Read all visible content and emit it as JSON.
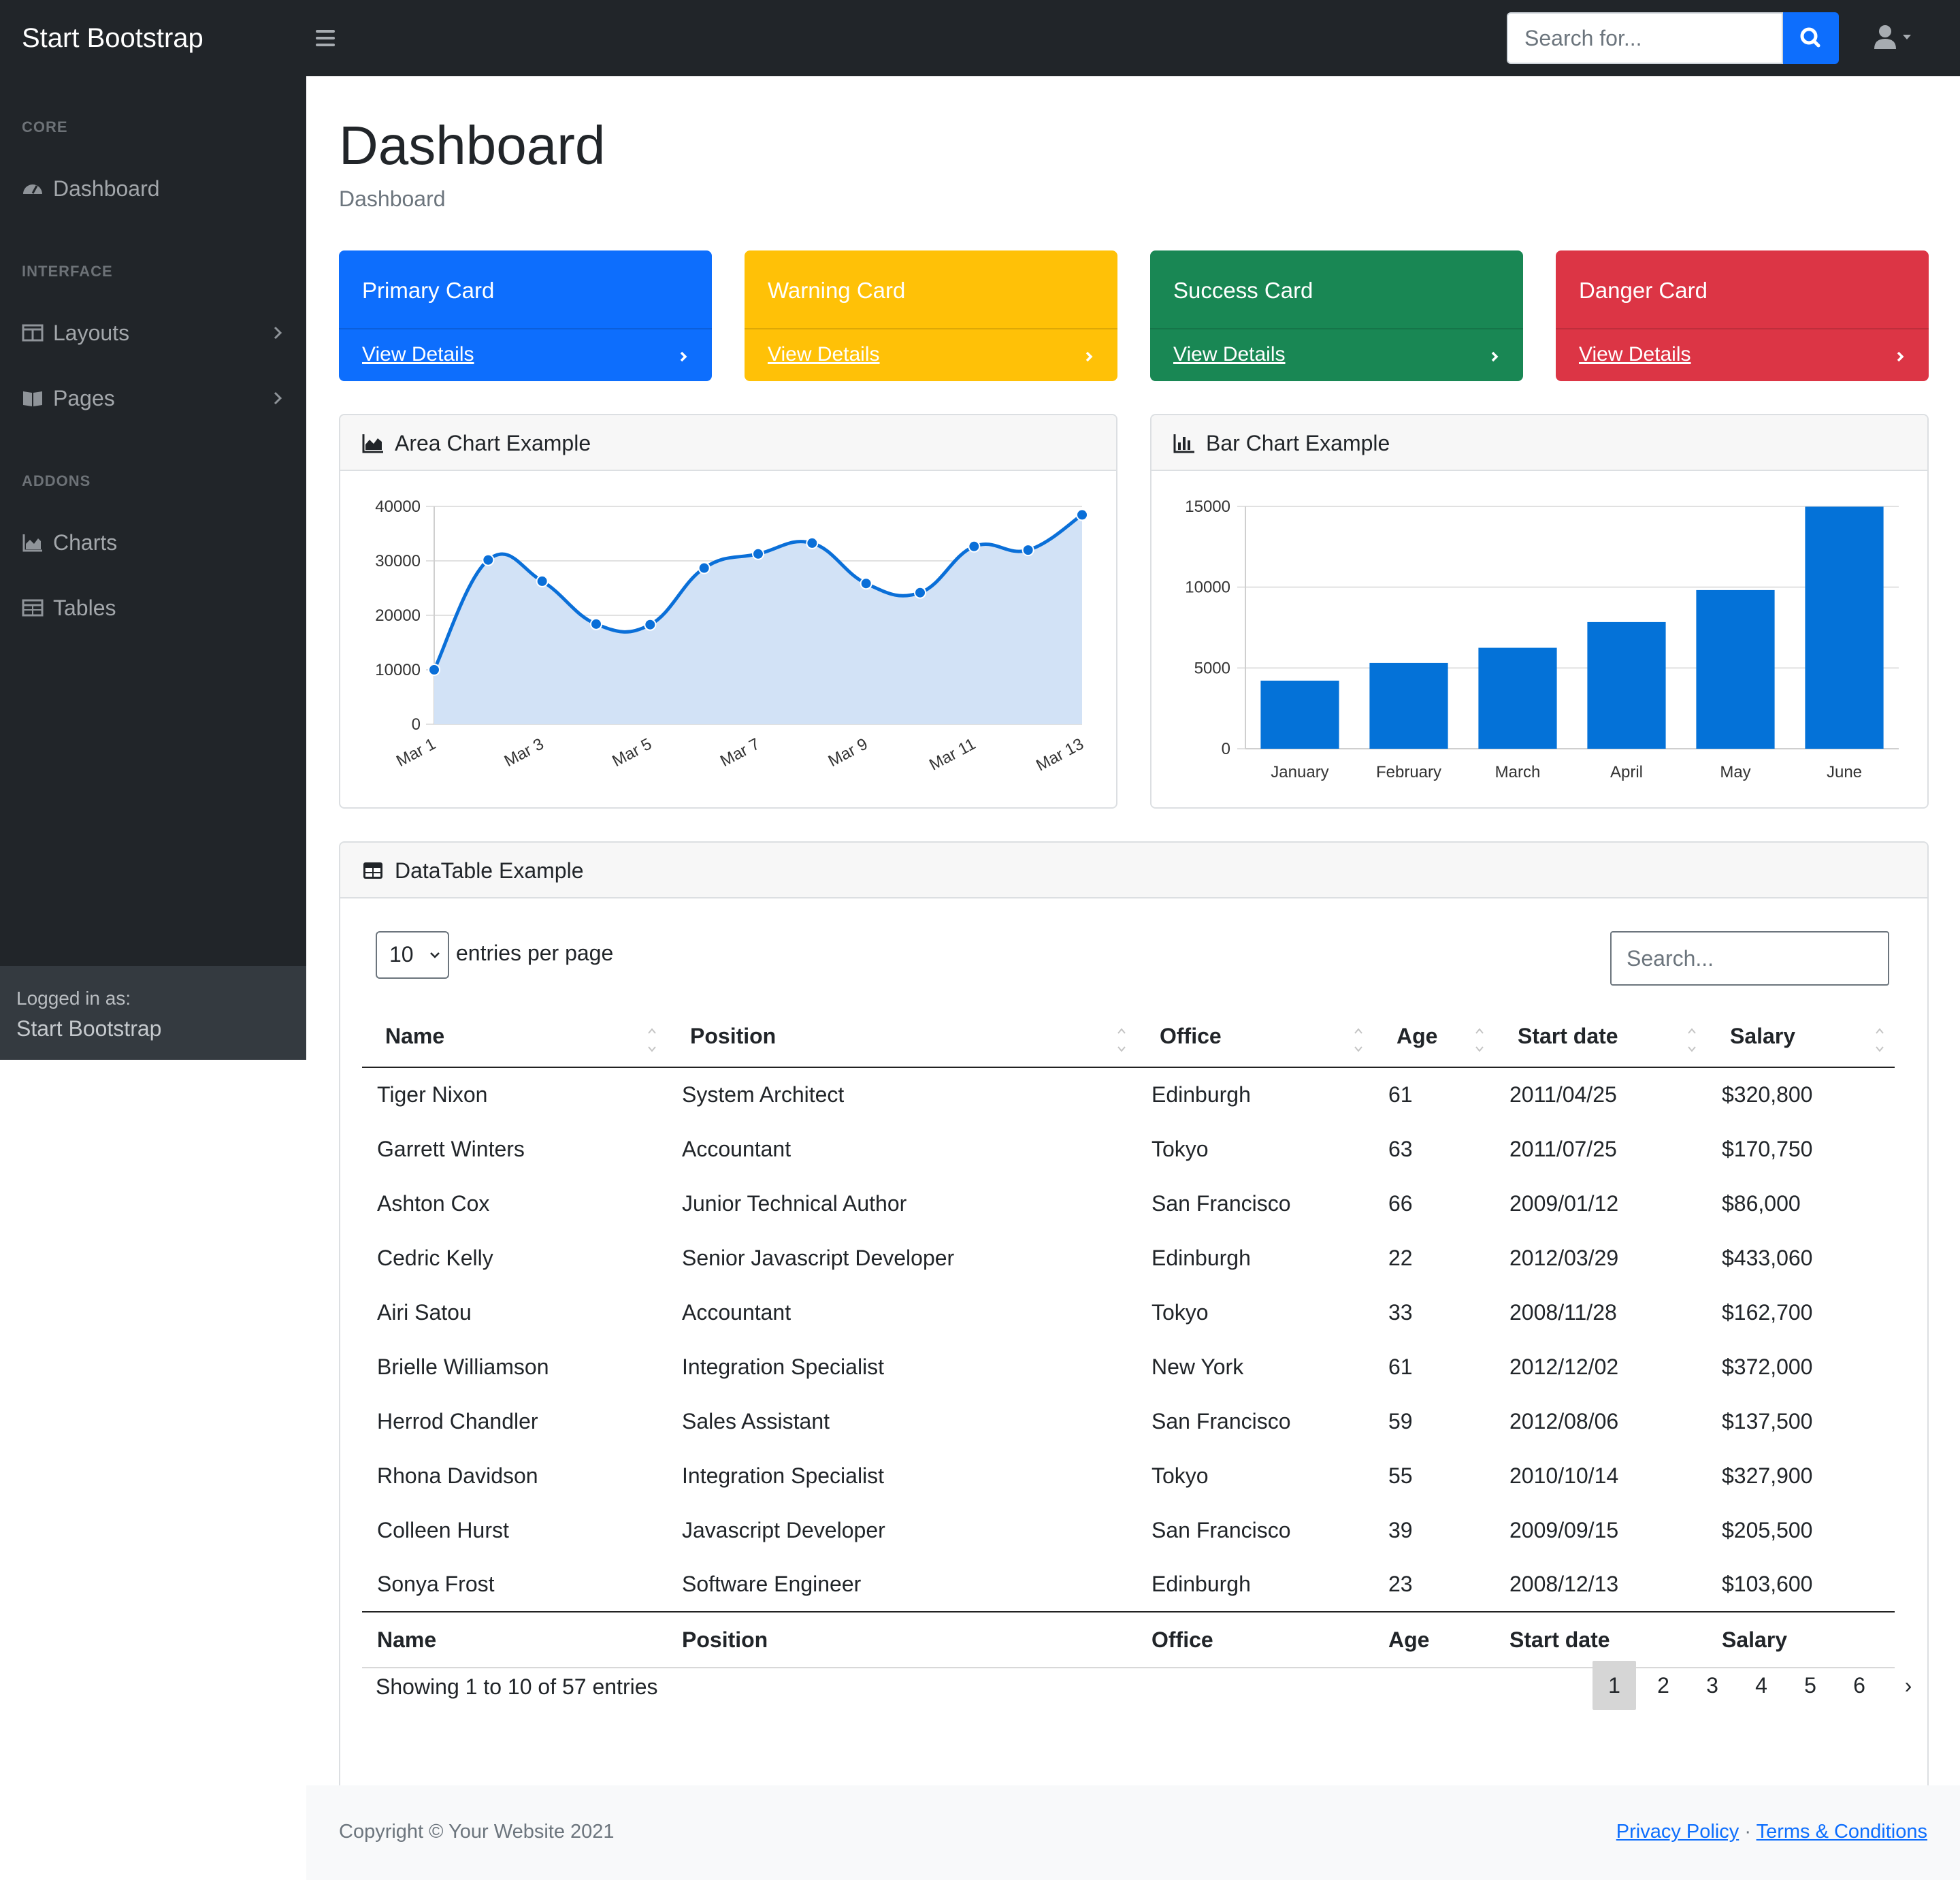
{
  "navbar": {
    "brand": "Start Bootstrap",
    "search_placeholder": "Search for...",
    "accent": "#0d6efd"
  },
  "sidebar": {
    "sections": [
      {
        "heading": "CORE",
        "items": [
          {
            "label": "Dashboard",
            "icon": "tachometer-icon",
            "has_chevron": false
          }
        ]
      },
      {
        "heading": "INTERFACE",
        "items": [
          {
            "label": "Layouts",
            "icon": "columns-icon",
            "has_chevron": true
          },
          {
            "label": "Pages",
            "icon": "book-open-icon",
            "has_chevron": true
          }
        ]
      },
      {
        "heading": "ADDONS",
        "items": [
          {
            "label": "Charts",
            "icon": "area-chart-icon",
            "has_chevron": false
          },
          {
            "label": "Tables",
            "icon": "table-icon",
            "has_chevron": false
          }
        ]
      }
    ],
    "footer": {
      "small": "Logged in as:",
      "name": "Start Bootstrap"
    }
  },
  "main": {
    "title": "Dashboard",
    "breadcrumb": "Dashboard"
  },
  "stat_cards": [
    {
      "title": "Primary Card",
      "link": "View Details",
      "color": "#0d6efd"
    },
    {
      "title": "Warning Card",
      "link": "View Details",
      "color": "#ffc107"
    },
    {
      "title": "Success Card",
      "link": "View Details",
      "color": "#198754"
    },
    {
      "title": "Danger Card",
      "link": "View Details",
      "color": "#dc3545"
    }
  ],
  "area_card": {
    "title": "Area Chart Example",
    "icon": "chart-area-icon"
  },
  "bar_card": {
    "title": "Bar Chart Example",
    "icon": "chart-bar-icon"
  },
  "chart_data": [
    {
      "type": "area",
      "title": "Area Chart Example",
      "x": [
        "Mar 1",
        "Mar 2",
        "Mar 3",
        "Mar 4",
        "Mar 5",
        "Mar 6",
        "Mar 7",
        "Mar 8",
        "Mar 9",
        "Mar 10",
        "Mar 11",
        "Mar 12",
        "Mar 13"
      ],
      "x_tick_labels": [
        "Mar 1",
        "Mar 3",
        "Mar 5",
        "Mar 7",
        "Mar 9",
        "Mar 11",
        "Mar 13"
      ],
      "values": [
        10000,
        30162,
        26263,
        18394,
        18287,
        28682,
        31274,
        33259,
        25849,
        24159,
        32651,
        31984,
        38451
      ],
      "ylim": [
        0,
        40000
      ],
      "y_ticks": [
        0,
        10000,
        20000,
        30000,
        40000
      ],
      "grid": true,
      "line_color": "#0a6fd8",
      "fill_color": "#d2e2f6"
    },
    {
      "type": "bar",
      "title": "Bar Chart Example",
      "categories": [
        "January",
        "February",
        "March",
        "April",
        "May",
        "June"
      ],
      "values": [
        4215,
        5312,
        6251,
        7841,
        9821,
        14984
      ],
      "ylim": [
        0,
        15000
      ],
      "y_ticks": [
        0,
        5000,
        10000,
        15000
      ],
      "grid": true,
      "bar_color": "#0472d8"
    }
  ],
  "table_card": {
    "title": "DataTable Example",
    "icon": "table-icon"
  },
  "datatable": {
    "page_size": "10",
    "per_page_label": "entries per page",
    "search_placeholder": "Search...",
    "columns": [
      "Name",
      "Position",
      "Office",
      "Age",
      "Start date",
      "Salary"
    ],
    "rows": [
      [
        "Tiger Nixon",
        "System Architect",
        "Edinburgh",
        "61",
        "2011/04/25",
        "$320,800"
      ],
      [
        "Garrett Winters",
        "Accountant",
        "Tokyo",
        "63",
        "2011/07/25",
        "$170,750"
      ],
      [
        "Ashton Cox",
        "Junior Technical Author",
        "San Francisco",
        "66",
        "2009/01/12",
        "$86,000"
      ],
      [
        "Cedric Kelly",
        "Senior Javascript Developer",
        "Edinburgh",
        "22",
        "2012/03/29",
        "$433,060"
      ],
      [
        "Airi Satou",
        "Accountant",
        "Tokyo",
        "33",
        "2008/11/28",
        "$162,700"
      ],
      [
        "Brielle Williamson",
        "Integration Specialist",
        "New York",
        "61",
        "2012/12/02",
        "$372,000"
      ],
      [
        "Herrod Chandler",
        "Sales Assistant",
        "San Francisco",
        "59",
        "2012/08/06",
        "$137,500"
      ],
      [
        "Rhona Davidson",
        "Integration Specialist",
        "Tokyo",
        "55",
        "2010/10/14",
        "$327,900"
      ],
      [
        "Colleen Hurst",
        "Javascript Developer",
        "San Francisco",
        "39",
        "2009/09/15",
        "$205,500"
      ],
      [
        "Sonya Frost",
        "Software Engineer",
        "Edinburgh",
        "23",
        "2008/12/13",
        "$103,600"
      ]
    ],
    "info": "Showing 1 to 10 of 57 entries",
    "pages": [
      "1",
      "2",
      "3",
      "4",
      "5",
      "6"
    ],
    "active_page": "1",
    "next_label": "›"
  },
  "footer": {
    "copyright": "Copyright © Your Website 2021",
    "privacy": "Privacy Policy",
    "separator": "·",
    "terms": "Terms & Conditions"
  }
}
